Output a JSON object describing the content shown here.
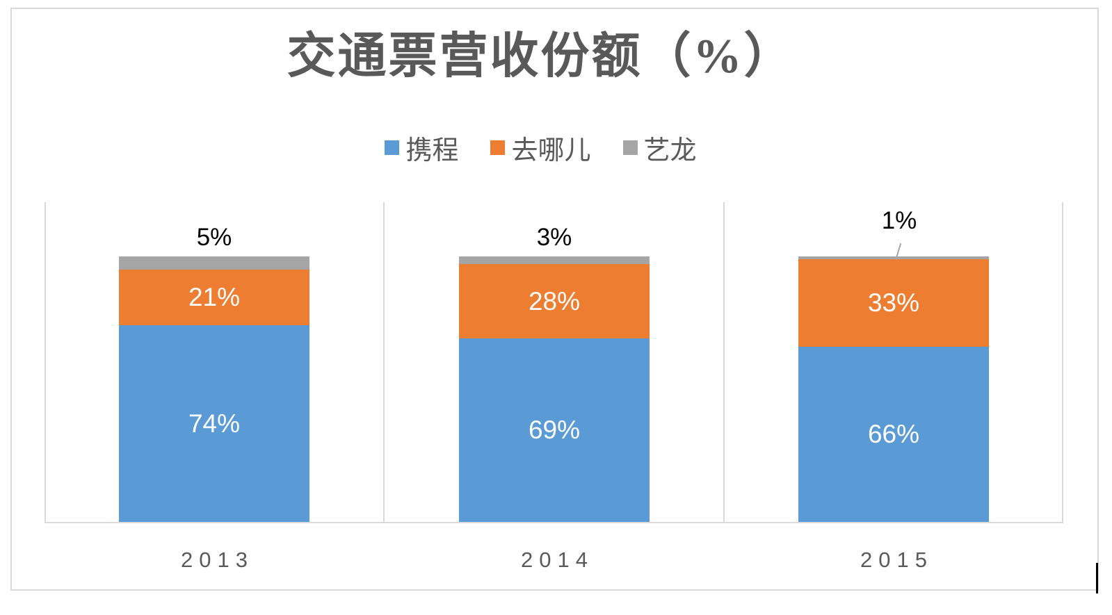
{
  "window": {
    "background": "#FFFFFF",
    "frame_border_color": "#D9D9D9"
  },
  "chart_data": {
    "type": "bar",
    "stacked": true,
    "title": "交通票营收份额（%）",
    "categories": [
      "2013",
      "2014",
      "2015"
    ],
    "series": [
      {
        "name": "携程",
        "color": "#5B9BD5",
        "values": [
          74,
          69,
          66
        ],
        "labels": [
          "74%",
          "69%",
          "66%"
        ]
      },
      {
        "name": "去哪儿",
        "color": "#ED7D31",
        "values": [
          21,
          28,
          33
        ],
        "labels": [
          "21%",
          "28%",
          "33%"
        ]
      },
      {
        "name": "艺龙",
        "color": "#A5A5A5",
        "values": [
          5,
          3,
          1
        ],
        "labels": [
          "5%",
          "3%",
          "1%"
        ]
      }
    ],
    "legend_position": "top",
    "xlabel": "",
    "ylabel": "",
    "ylim": [
      0,
      100
    ],
    "grid": "category-separator-verticals",
    "data_label_placement": {
      "携程": "inside-center",
      "去哪儿": "inside-center",
      "艺龙": "outside-above, leader line when 1%"
    },
    "colors": {
      "title_text": "#595959",
      "axis_text": "#595959",
      "legend_text": "#595959",
      "inside_label_text": "#FFFFFF",
      "outside_label_text": "#000000",
      "gridline": "#D9D9D9",
      "leader_line": "#A6A6A6",
      "caret": "#000000"
    }
  },
  "artifacts": {
    "text_caret_visible": true
  }
}
